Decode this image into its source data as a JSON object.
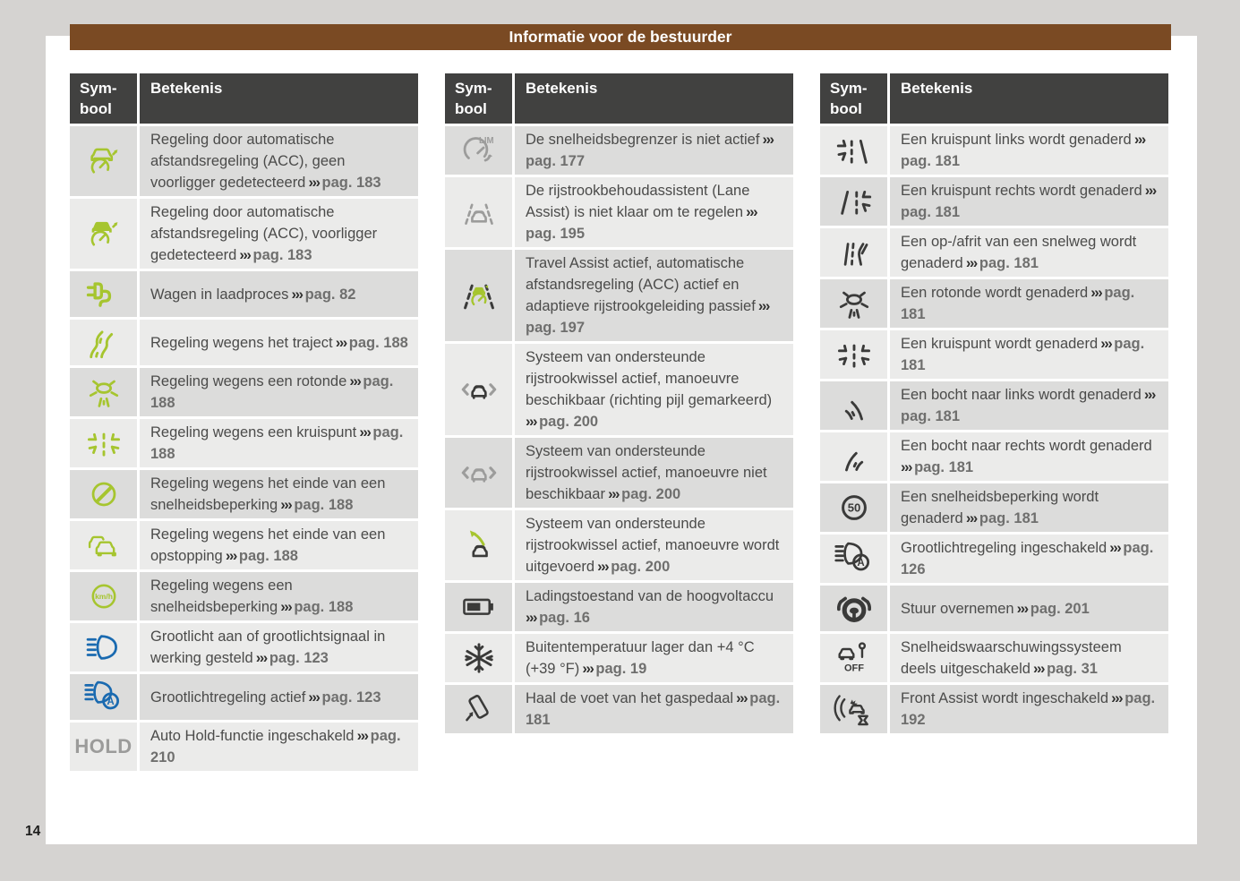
{
  "page": {
    "title": "Informatie voor de bestuurder",
    "page_number": "14"
  },
  "table_header": {
    "symbol_line1": "Sym-",
    "symbol_line2": "bool",
    "meaning": "Betekenis"
  },
  "ref_marker": "›››",
  "icon_texts": {
    "hold": "HOLD",
    "kmh": "km/h",
    "lim": "LIM",
    "off": "OFF",
    "auto_a": "A",
    "limit_50": "50"
  },
  "colors": {
    "title_bar": "#7a4a23",
    "table_header": "#414140",
    "row_dark": "#dcdcdb",
    "row_light": "#ebebea",
    "icon_green": "#a6c52f",
    "icon_blue": "#1a6ab0",
    "icon_gray": "#9c9c9b",
    "icon_dark": "#3a3a39",
    "body_text": "#4b4b4a",
    "ref_text": "#6f6f6e",
    "page_bg": "#ffffff",
    "canvas_bg": "#d5d3d1"
  },
  "tables": [
    {
      "rows": [
        {
          "icon": "acc-no-vehicle-ahead-icon",
          "text": "Regeling door automatische afstandsregeling (ACC), geen voorligger gedetecteerd",
          "ref": "pag. 183"
        },
        {
          "icon": "acc-vehicle-detected-icon",
          "text": "Regeling door automatische afstandsregeling (ACC), voorligger gedetecteerd",
          "ref": "pag. 183"
        },
        {
          "icon": "charging-plug-icon",
          "text": "Wagen in laadproces",
          "ref": "pag. 82"
        },
        {
          "icon": "route-control-icon",
          "text": "Regeling wegens het traject",
          "ref": "pag. 188"
        },
        {
          "icon": "roundabout-control-icon",
          "text": "Regeling wegens een rotonde",
          "ref": "pag. 188"
        },
        {
          "icon": "junction-control-icon",
          "text": "Regeling wegens een kruispunt",
          "ref": "pag. 188"
        },
        {
          "icon": "end-of-speed-limit-icon",
          "text": "Regeling wegens het einde van een snelheidsbeperking",
          "ref": "pag. 188"
        },
        {
          "icon": "end-of-congestion-icon",
          "text": "Regeling wegens het einde van een opstopping",
          "ref": "pag. 188"
        },
        {
          "icon": "speed-limit-control-icon",
          "text": "Regeling wegens een snelheidsbeperking",
          "ref": "pag. 188"
        },
        {
          "icon": "high-beam-icon",
          "text": "Grootlicht aan of grootlichtsignaal in werking gesteld",
          "ref": "pag. 123"
        },
        {
          "icon": "high-beam-assist-blue-icon",
          "text": "Grootlichtregeling actief",
          "ref": "pag. 123"
        },
        {
          "icon": "auto-hold-icon",
          "text": "Auto Hold-functie ingeschakeld",
          "ref": "pag. 210"
        }
      ]
    },
    {
      "rows": [
        {
          "icon": "speed-limiter-inactive-icon",
          "text": "De snelheidsbegrenzer is niet actief",
          "ref": "pag. 177"
        },
        {
          "icon": "lane-assist-not-ready-icon",
          "text": "De rijstrookbehoudassistent (Lane Assist) is niet klaar om te regelen",
          "ref": "pag. 195"
        },
        {
          "icon": "travel-assist-icon",
          "text": "Travel Assist actief, automatische afstandsregeling (ACC) actief en adaptieve rijstrookgeleiding passief",
          "ref": "pag. 197"
        },
        {
          "icon": "lane-change-available-icon",
          "text": "Systeem van ondersteunde rijstrookwissel actief, manoeuvre beschikbaar (richting pijl gemarkeerd)",
          "ref": "pag. 200"
        },
        {
          "icon": "lane-change-unavailable-icon",
          "text": "Systeem van ondersteunde rijstrookwissel actief, manoeuvre niet beschikbaar",
          "ref": "pag. 200"
        },
        {
          "icon": "lane-change-executing-icon",
          "text": "Systeem van ondersteunde rijstrookwissel actief, manoeuvre wordt uitgevoerd",
          "ref": "pag. 200"
        },
        {
          "icon": "battery-charge-icon",
          "text": "Ladingstoestand van de hoogvoltaccu",
          "ref": "pag. 16"
        },
        {
          "icon": "snowflake-icon",
          "text": "Buitentemperatuur lager dan +4 °C (+39 °F)",
          "ref": "pag. 19"
        },
        {
          "icon": "lift-off-accelerator-icon",
          "text": "Haal de voet van het gaspedaal",
          "ref": "pag. 181"
        }
      ]
    },
    {
      "rows": [
        {
          "icon": "junction-left-icon",
          "text": "Een kruispunt links wordt genaderd",
          "ref": "pag. 181"
        },
        {
          "icon": "junction-right-icon",
          "text": "Een kruispunt rechts wordt genaderd",
          "ref": "pag. 181"
        },
        {
          "icon": "highway-ramp-icon",
          "text": "Een op-/afrit van een snelweg wordt genaderd",
          "ref": "pag. 181"
        },
        {
          "icon": "roundabout-ahead-icon",
          "text": "Een rotonde wordt genaderd",
          "ref": "pag. 181"
        },
        {
          "icon": "junction-ahead-icon",
          "text": "Een kruispunt wordt genaderd",
          "ref": "pag. 181"
        },
        {
          "icon": "curve-left-icon",
          "text": "Een bocht naar links wordt genaderd",
          "ref": "pag. 181"
        },
        {
          "icon": "curve-right-icon",
          "text": "Een bocht naar rechts wordt genaderd",
          "ref": "pag. 181"
        },
        {
          "icon": "speed-limit-sign-icon",
          "text": "Een snelheidsbeperking wordt genaderd",
          "ref": "pag. 181"
        },
        {
          "icon": "high-beam-assist-dark-icon",
          "text": "Grootlichtregeling ingeschakeld",
          "ref": "pag. 126"
        },
        {
          "icon": "steering-takeover-icon",
          "text": "Stuur overnemen",
          "ref": "pag. 201"
        },
        {
          "icon": "speed-warning-partial-off-icon",
          "text": "Snelheidswaarschuwingssysteem deels uitgeschakeld",
          "ref": "pag. 31"
        },
        {
          "icon": "front-assist-icon",
          "text": "Front Assist wordt ingeschakeld",
          "ref": "pag. 192"
        }
      ]
    }
  ]
}
